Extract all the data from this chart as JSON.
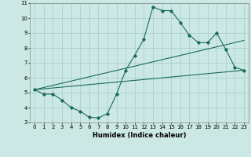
{
  "title": "",
  "xlabel": "Humidex (Indice chaleur)",
  "xlim": [
    -0.5,
    23.5
  ],
  "ylim": [
    3,
    11
  ],
  "xticks": [
    0,
    1,
    2,
    3,
    4,
    5,
    6,
    7,
    8,
    9,
    10,
    11,
    12,
    13,
    14,
    15,
    16,
    17,
    18,
    19,
    20,
    21,
    22,
    23
  ],
  "yticks": [
    3,
    4,
    5,
    6,
    7,
    8,
    9,
    10,
    11
  ],
  "bg_color": "#cce8e4",
  "grid_color": "#aacfcc",
  "line_color": "#1a6b5a",
  "line1_x": [
    0,
    1,
    2,
    3,
    4,
    5,
    6,
    7,
    8,
    9,
    10,
    11,
    12,
    13,
    14,
    15,
    16,
    17,
    18,
    19,
    20,
    21,
    22,
    23
  ],
  "line1_y": [
    5.2,
    4.9,
    4.9,
    4.5,
    4.0,
    3.75,
    3.35,
    3.3,
    3.6,
    4.9,
    6.5,
    7.5,
    8.6,
    10.75,
    10.5,
    10.5,
    9.7,
    8.85,
    8.35,
    8.35,
    9.0,
    7.9,
    6.7,
    6.5
  ],
  "line2_x": [
    0,
    23
  ],
  "line2_y": [
    5.2,
    6.5
  ],
  "line3_x": [
    0,
    23
  ],
  "line3_y": [
    5.2,
    8.5
  ]
}
